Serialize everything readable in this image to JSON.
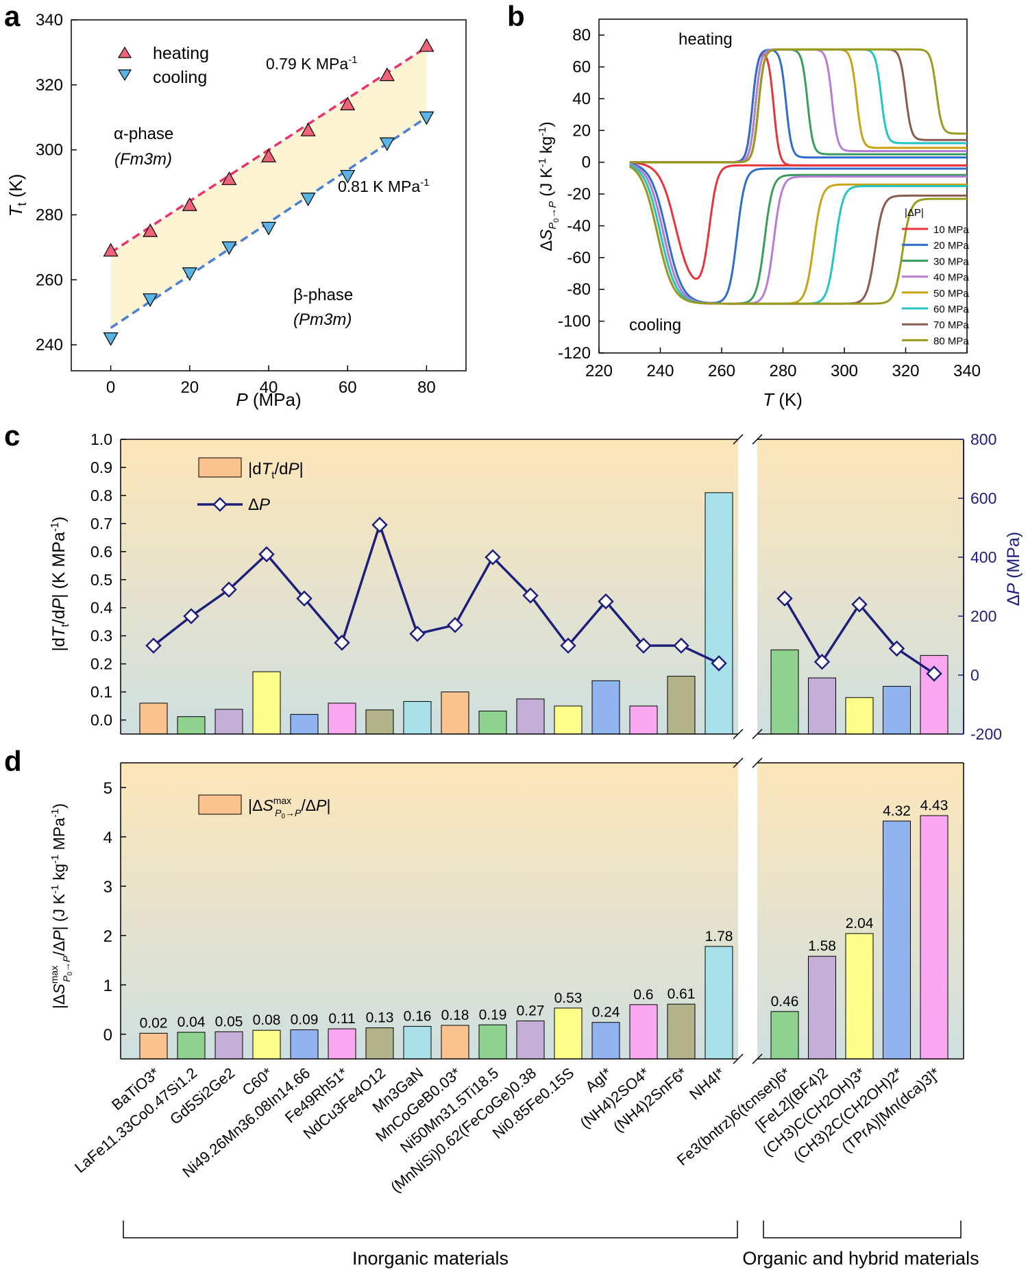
{
  "panels": {
    "a": "a",
    "b": "b",
    "c": "c",
    "d": "d"
  },
  "chart_data": [
    {
      "id": "a",
      "type": "scatter",
      "xlabel": "P (MPa)",
      "ylabel": "Tt (K)",
      "xlim": [
        -10,
        90
      ],
      "ylim": [
        232,
        340
      ],
      "xticks": [
        0,
        20,
        40,
        60,
        80
      ],
      "yticks": [
        240,
        260,
        280,
        300,
        320,
        340
      ],
      "series": [
        {
          "name": "heating",
          "color": "#f0637a",
          "marker": "triangle-up",
          "x": [
            0,
            10,
            20,
            30,
            40,
            50,
            60,
            70,
            80
          ],
          "y": [
            269,
            275,
            283,
            291,
            298,
            306,
            314,
            323,
            332
          ]
        },
        {
          "name": "cooling",
          "color": "#5ab4e6",
          "marker": "triangle-down",
          "x": [
            0,
            10,
            20,
            30,
            40,
            50,
            60,
            70,
            80
          ],
          "y": [
            242,
            254,
            262,
            270,
            276,
            285,
            292,
            302,
            310
          ]
        }
      ],
      "fits": [
        {
          "color": "#e8336f",
          "x": [
            0,
            80
          ],
          "y": [
            268.4,
            331.6
          ]
        },
        {
          "color": "#4b7ed8",
          "x": [
            0,
            80
          ],
          "y": [
            245.2,
            310.0
          ]
        }
      ],
      "annotations": {
        "heating_slope": "0.79 K MPa",
        "cooling_slope": "0.81 K MPa",
        "slope_exp": "-1",
        "alpha_phase": "α-phase",
        "alpha_group": "(Fm3m)",
        "beta_phase": "β-phase",
        "beta_group": "(Pm3m)"
      }
    },
    {
      "id": "b",
      "type": "line",
      "xlabel": "T (K)",
      "ylabel": "ΔS P0→P (J K-1 kg-1)",
      "xlim": [
        220,
        340
      ],
      "ylim": [
        -120,
        90
      ],
      "xticks": [
        220,
        240,
        260,
        280,
        300,
        320,
        340
      ],
      "yticks": [
        -120,
        -100,
        -80,
        -60,
        -40,
        -20,
        0,
        20,
        40,
        60,
        80
      ],
      "legend_title": "|ΔP|",
      "text_heating": "heating",
      "text_cooling": "cooling",
      "series": [
        {
          "name": "10 MPa",
          "color": "#e8333b",
          "heat_rise": 270,
          "heat_fall": 277,
          "heat_peak": 71,
          "heat_final": -2,
          "cool_fall": 245,
          "cool_rise": 256,
          "cool_min": -82,
          "cool_final": -2
        },
        {
          "name": "20 MPa",
          "color": "#2f6ccc",
          "heat_rise": 270,
          "heat_fall": 281,
          "heat_peak": 71,
          "heat_final": 3,
          "cool_fall": 242,
          "cool_rise": 265,
          "cool_min": -89,
          "cool_final": -4
        },
        {
          "name": "30 MPa",
          "color": "#3a9c5c",
          "heat_rise": 271,
          "heat_fall": 288,
          "heat_peak": 71,
          "heat_final": 5,
          "cool_fall": 241,
          "cool_rise": 274,
          "cool_min": -89,
          "cool_final": -8
        },
        {
          "name": "40 MPa",
          "color": "#b67cd8",
          "heat_rise": 271,
          "heat_fall": 296,
          "heat_peak": 71,
          "heat_final": 7,
          "cool_fall": 241,
          "cool_rise": 277,
          "cool_min": -89,
          "cool_final": -9
        },
        {
          "name": "50 MPa",
          "color": "#c9a314",
          "heat_rise": 272,
          "heat_fall": 304,
          "heat_peak": 71,
          "heat_final": 9,
          "cool_fall": 240,
          "cool_rise": 290,
          "cool_min": -89,
          "cool_final": -14
        },
        {
          "name": "60 MPa",
          "color": "#22c4c4",
          "heat_rise": 272,
          "heat_fall": 312,
          "heat_peak": 71,
          "heat_final": 12,
          "cool_fall": 240,
          "cool_rise": 297,
          "cool_min": -89,
          "cool_final": -15
        },
        {
          "name": "70 MPa",
          "color": "#8a5a4a",
          "heat_rise": 272,
          "heat_fall": 320,
          "heat_peak": 71,
          "heat_final": 14,
          "cool_fall": 239,
          "cool_rise": 310,
          "cool_min": -89,
          "cool_final": -21
        },
        {
          "name": "80 MPa",
          "color": "#9a9a1c",
          "heat_rise": 272,
          "heat_fall": 330,
          "heat_peak": 71,
          "heat_final": 18,
          "cool_fall": 239,
          "cool_rise": 319,
          "cool_min": -89,
          "cool_final": -23
        }
      ]
    },
    {
      "id": "c",
      "type": "bar",
      "left_ylabel": "|dTt/dP| (K MPa-1)",
      "right_ylabel": "ΔP (MPa)",
      "left_ylim": [
        -0.05,
        1.0
      ],
      "right_ylim": [
        -200,
        800
      ],
      "left_yticks": [
        "0.0",
        "0.1",
        "0.2",
        "0.3",
        "0.4",
        "0.5",
        "0.6",
        "0.7",
        "0.8",
        "0.9",
        "1.0"
      ],
      "right_yticks": [
        "-200",
        "0",
        "200",
        "400",
        "600",
        "800"
      ],
      "legend": [
        "|dTt/dP|",
        "ΔP"
      ],
      "bar_values": [
        0.06,
        0.012,
        0.038,
        0.172,
        0.02,
        0.06,
        0.036,
        0.066,
        0.1,
        0.032,
        0.075,
        0.05,
        0.14,
        0.05,
        0.156,
        0.81,
        0.25,
        0.15,
        0.08,
        0.12,
        0.23
      ],
      "delta_p": [
        100,
        200,
        290,
        410,
        260,
        110,
        510,
        140,
        170,
        400,
        270,
        100,
        250,
        100,
        100,
        40,
        260,
        45,
        240,
        90,
        5
      ]
    },
    {
      "id": "d",
      "type": "bar",
      "ylabel": "|ΔS max P0→P/ΔP| (J K-1 kg-1 MPa-1)",
      "ylim": [
        -0.5,
        5.5
      ],
      "yticks": [
        0,
        1,
        2,
        3,
        4,
        5
      ],
      "legend": "|ΔS max P0→P/ΔP|",
      "values": [
        0.02,
        0.04,
        0.05,
        0.08,
        0.09,
        0.11,
        0.13,
        0.16,
        0.18,
        0.19,
        0.27,
        0.53,
        0.24,
        0.6,
        0.61,
        1.78,
        0.46,
        1.58,
        2.04,
        4.32,
        4.43
      ],
      "labels": [
        "0.02",
        "0.04",
        "0.05",
        "0.08",
        "0.09",
        "0.11",
        "0.13",
        "0.16",
        "0.18",
        "0.19",
        "0.27",
        "0.53",
        "0.24",
        "0.6",
        "0.61",
        "1.78",
        "0.46",
        "1.58",
        "2.04",
        "4.32",
        "4.43"
      ]
    }
  ],
  "materials": {
    "names": [
      "BaTiO3*",
      "LaFe11.33Co0.47Si1.2",
      "Gd5Si2Ge2",
      "C60*",
      "Ni49.26Mn36.08In14.66",
      "Fe49Rh51*",
      "NdCu3Fe4O12",
      "Mn3GaN",
      "MnCoGeB0.03*",
      "Ni50Mn31.5Ti18.5",
      "(MnNiSi)0.62(FeCoGe)0.38",
      "Ni0.85Fe0.15S",
      "AgI*",
      "(NH4)2SO4*",
      "(NH4)2SnF6*",
      "NH4I*",
      "Fe3(bntrz)6(tcnset)6*",
      "[FeL2](BF4)2",
      "(CH3)C(CH2OH)3*",
      "(CH3)2C(CH2OH)2*",
      "(TPrA)[Mn(dca)3]*"
    ],
    "colors": [
      "#f9c28e",
      "#8fd18f",
      "#c3aed6",
      "#fdfd8a",
      "#8fb4f0",
      "#f9a8f0",
      "#b3b38a",
      "#a9e1ea",
      "#f9c28e",
      "#8fd18f",
      "#c3aed6",
      "#fdfd8a",
      "#8fb4f0",
      "#f9a8f0",
      "#b3b38a",
      "#a9e1ea",
      "#8fd18f",
      "#c3aed6",
      "#fdfd8a",
      "#8fb4f0",
      "#f9a8f0"
    ],
    "group_inorganic": "Inorganic materials",
    "group_organic": "Organic and hybrid materials"
  }
}
